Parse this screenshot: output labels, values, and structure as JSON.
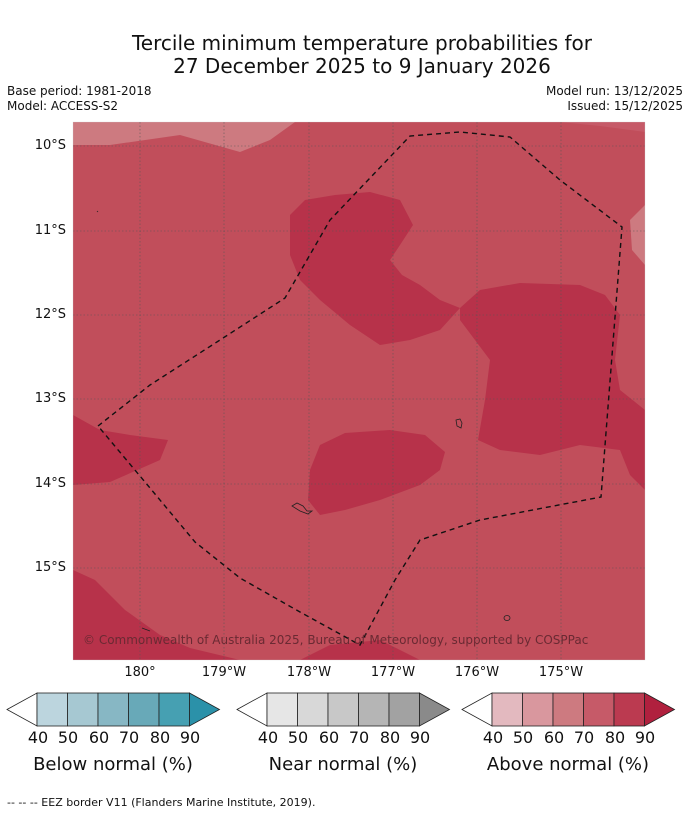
{
  "title": {
    "line1": "Tercile minimum temperature probabilities for",
    "line2": "27 December 2025 to 9 January 2026"
  },
  "meta": {
    "base_period": "Base period: 1981-2018",
    "model": "Model: ACCESS-S2",
    "model_run": "Model run: 13/12/2025",
    "issued": "Issued: 15/12/2025"
  },
  "map": {
    "lat_labels": [
      "10°S",
      "11°S",
      "12°S",
      "13°S",
      "14°S",
      "15°S"
    ],
    "lon_labels": [
      "180°",
      "179°W",
      "178°W",
      "177°W",
      "176°W",
      "175°W"
    ],
    "copyright": "© Commonwealth of Australia 2025, Bureau of Meteorology, supported by COSPPac",
    "colors": {
      "above_70": "#cd7a80",
      "above_80": "#c14e5b",
      "above_90": "#b7324a",
      "grid": "#555555",
      "eez": "#111111"
    }
  },
  "colorbars": [
    {
      "name": "below",
      "label": "Below normal (%)",
      "ticks": [
        "40",
        "50",
        "60",
        "70",
        "80",
        "90"
      ],
      "colors": [
        "#ffffff",
        "#bcd5de",
        "#a6c8d2",
        "#87b7c4",
        "#68a9b8",
        "#46a0b2",
        "#2b91a9"
      ]
    },
    {
      "name": "near",
      "label": "Near normal (%)",
      "ticks": [
        "40",
        "50",
        "60",
        "70",
        "80",
        "90"
      ],
      "colors": [
        "#ffffff",
        "#e6e6e6",
        "#d8d8d8",
        "#c8c8c8",
        "#b5b5b5",
        "#a2a2a2",
        "#8a8a8a"
      ]
    },
    {
      "name": "above",
      "label": "Above normal (%)",
      "ticks": [
        "40",
        "50",
        "60",
        "70",
        "80",
        "90"
      ],
      "colors": [
        "#ffffff",
        "#e3b9bf",
        "#d9979e",
        "#cd7a80",
        "#c65a68",
        "#bb3a50",
        "#b0203e"
      ]
    }
  ],
  "footer": {
    "legend_text": "--  --  -- EEZ border V11 (Flanders Marine Institute, 2019)."
  }
}
